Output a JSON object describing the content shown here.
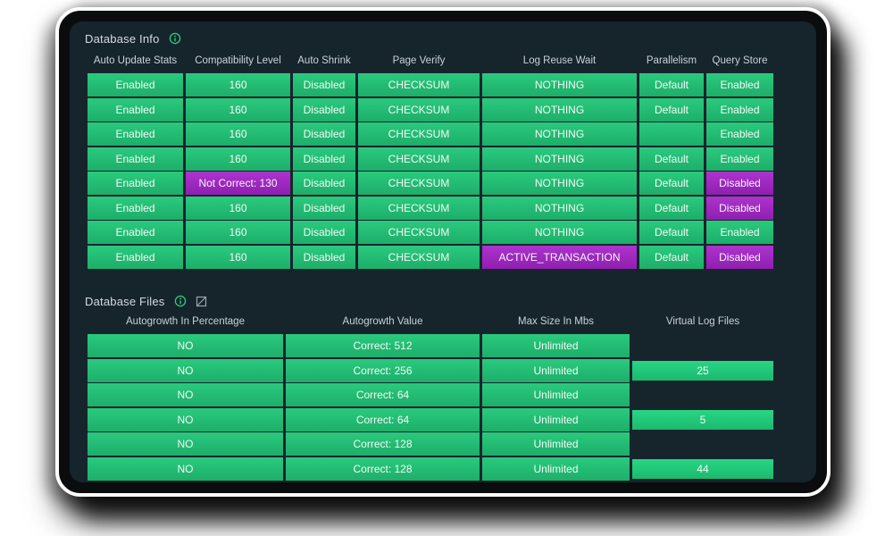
{
  "colors": {
    "page_bg": "#ffffff",
    "frame_bg": "#0a0c0d",
    "panel_bg": "#16242c",
    "cell_green": "#23bd74",
    "cell_purple": "#9e28c0",
    "bar_green": "#22cb7b",
    "accent_green": "#2bd07e",
    "icon_gray": "#9aa4ac",
    "header_text": "#c9d2d8",
    "cell_text": "#f3f9f5"
  },
  "database_info": {
    "title": "Database Info",
    "columns": [
      "Auto Update Stats",
      "Compatibility Level",
      "Auto Shrink",
      "Page Verify",
      "Log Reuse Wait",
      "Parallelism",
      "Query Store"
    ],
    "rows": [
      [
        {
          "t": "Enabled",
          "v": "green"
        },
        {
          "t": "160",
          "v": "green"
        },
        {
          "t": "Disabled",
          "v": "green"
        },
        {
          "t": "CHECKSUM",
          "v": "green"
        },
        {
          "t": "NOTHING",
          "v": "green"
        },
        {
          "t": "Default",
          "v": "green"
        },
        {
          "t": "Enabled",
          "v": "green"
        }
      ],
      [
        {
          "t": "Enabled",
          "v": "green"
        },
        {
          "t": "160",
          "v": "green"
        },
        {
          "t": "Disabled",
          "v": "green"
        },
        {
          "t": "CHECKSUM",
          "v": "green"
        },
        {
          "t": "NOTHING",
          "v": "green"
        },
        {
          "t": "Default",
          "v": "green"
        },
        {
          "t": "Enabled",
          "v": "green"
        }
      ],
      [
        {
          "t": "Enabled",
          "v": "green"
        },
        {
          "t": "160",
          "v": "green"
        },
        {
          "t": "Disabled",
          "v": "green"
        },
        {
          "t": "CHECKSUM",
          "v": "green"
        },
        {
          "t": "NOTHING",
          "v": "green"
        },
        {
          "t": "",
          "v": "green"
        },
        {
          "t": "Enabled",
          "v": "green"
        }
      ],
      [
        {
          "t": "Enabled",
          "v": "green"
        },
        {
          "t": "160",
          "v": "green"
        },
        {
          "t": "Disabled",
          "v": "green"
        },
        {
          "t": "CHECKSUM",
          "v": "green"
        },
        {
          "t": "NOTHING",
          "v": "green"
        },
        {
          "t": "Default",
          "v": "green"
        },
        {
          "t": "Enabled",
          "v": "green"
        }
      ],
      [
        {
          "t": "Enabled",
          "v": "green"
        },
        {
          "t": "Not Correct: 130",
          "v": "purple"
        },
        {
          "t": "Disabled",
          "v": "green"
        },
        {
          "t": "CHECKSUM",
          "v": "green"
        },
        {
          "t": "NOTHING",
          "v": "green"
        },
        {
          "t": "Default",
          "v": "green"
        },
        {
          "t": "Disabled",
          "v": "purple"
        }
      ],
      [
        {
          "t": "Enabled",
          "v": "green"
        },
        {
          "t": "160",
          "v": "green"
        },
        {
          "t": "Disabled",
          "v": "green"
        },
        {
          "t": "CHECKSUM",
          "v": "green"
        },
        {
          "t": "NOTHING",
          "v": "green"
        },
        {
          "t": "Default",
          "v": "green"
        },
        {
          "t": "Disabled",
          "v": "purple"
        }
      ],
      [
        {
          "t": "Enabled",
          "v": "green"
        },
        {
          "t": "160",
          "v": "green"
        },
        {
          "t": "Disabled",
          "v": "green"
        },
        {
          "t": "CHECKSUM",
          "v": "green"
        },
        {
          "t": "NOTHING",
          "v": "green"
        },
        {
          "t": "Default",
          "v": "green"
        },
        {
          "t": "Enabled",
          "v": "green"
        }
      ],
      [
        {
          "t": "Enabled",
          "v": "green"
        },
        {
          "t": "160",
          "v": "green"
        },
        {
          "t": "Disabled",
          "v": "green"
        },
        {
          "t": "CHECKSUM",
          "v": "green"
        },
        {
          "t": "ACTIVE_TRANSACTION",
          "v": "purple"
        },
        {
          "t": "Default",
          "v": "green"
        },
        {
          "t": "Disabled",
          "v": "purple"
        }
      ]
    ]
  },
  "database_files": {
    "title": "Database Files",
    "columns": [
      "Autogrowth In Percentage",
      "Autogrowth Value",
      "Max Size In Mbs",
      "Virtual Log Files"
    ],
    "rows": [
      [
        {
          "t": "NO",
          "v": "green"
        },
        {
          "t": "Correct: 512",
          "v": "green"
        },
        {
          "t": "Unlimited",
          "v": "green"
        },
        {
          "t": "",
          "v": "empty"
        }
      ],
      [
        {
          "t": "NO",
          "v": "green"
        },
        {
          "t": "Correct: 256",
          "v": "green"
        },
        {
          "t": "Unlimited",
          "v": "green"
        },
        {
          "t": "25",
          "v": "bar"
        }
      ],
      [
        {
          "t": "NO",
          "v": "green"
        },
        {
          "t": "Correct: 64",
          "v": "green"
        },
        {
          "t": "Unlimited",
          "v": "green"
        },
        {
          "t": "",
          "v": "empty"
        }
      ],
      [
        {
          "t": "NO",
          "v": "green"
        },
        {
          "t": "Correct: 64",
          "v": "green"
        },
        {
          "t": "Unlimited",
          "v": "green"
        },
        {
          "t": "5",
          "v": "bar"
        }
      ],
      [
        {
          "t": "NO",
          "v": "green"
        },
        {
          "t": "Correct: 128",
          "v": "green"
        },
        {
          "t": "Unlimited",
          "v": "green"
        },
        {
          "t": "",
          "v": "empty"
        }
      ],
      [
        {
          "t": "NO",
          "v": "green"
        },
        {
          "t": "Correct: 128",
          "v": "green"
        },
        {
          "t": "Unlimited",
          "v": "green"
        },
        {
          "t": "44",
          "v": "bar"
        }
      ]
    ]
  }
}
